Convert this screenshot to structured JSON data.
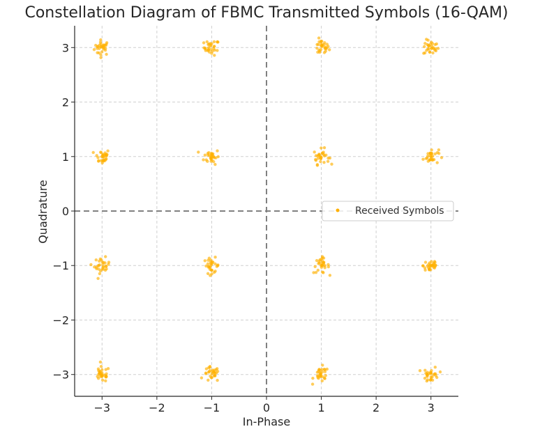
{
  "chart_data": {
    "type": "scatter",
    "title": "Constellation Diagram of FBMC Transmitted Symbols (16-QAM)",
    "xlabel": "In-Phase",
    "ylabel": "Quadrature",
    "xlim": [
      -3.5,
      3.5
    ],
    "ylim": [
      -3.4,
      3.4
    ],
    "xticks": [
      -3,
      -2,
      -1,
      0,
      1,
      2,
      3
    ],
    "yticks": [
      -3,
      -2,
      -1,
      0,
      1,
      2,
      3
    ],
    "xtick_labels": [
      "−3",
      "−2",
      "−1",
      "0",
      "1",
      "2",
      "3"
    ],
    "ytick_labels": [
      "−3",
      "−2",
      "−1",
      "0",
      "1",
      "2",
      "3"
    ],
    "grid": true,
    "reference_lines": [
      0,
      0
    ],
    "legend_position": "right",
    "series": [
      {
        "name": "Received Symbols",
        "color": "#FFB000",
        "marker": "circle",
        "ideal_points": [
          [
            -3,
            3
          ],
          [
            -1,
            3
          ],
          [
            1,
            3
          ],
          [
            3,
            3
          ],
          [
            -3,
            1
          ],
          [
            -1,
            1
          ],
          [
            1,
            1
          ],
          [
            3,
            1
          ],
          [
            -3,
            -1
          ],
          [
            -1,
            -1
          ],
          [
            1,
            -1
          ],
          [
            3,
            -1
          ],
          [
            -3,
            -3
          ],
          [
            -1,
            -3
          ],
          [
            1,
            -3
          ],
          [
            3,
            -3
          ]
        ],
        "points_per_symbol": 30,
        "noise_std": 0.07
      }
    ]
  }
}
